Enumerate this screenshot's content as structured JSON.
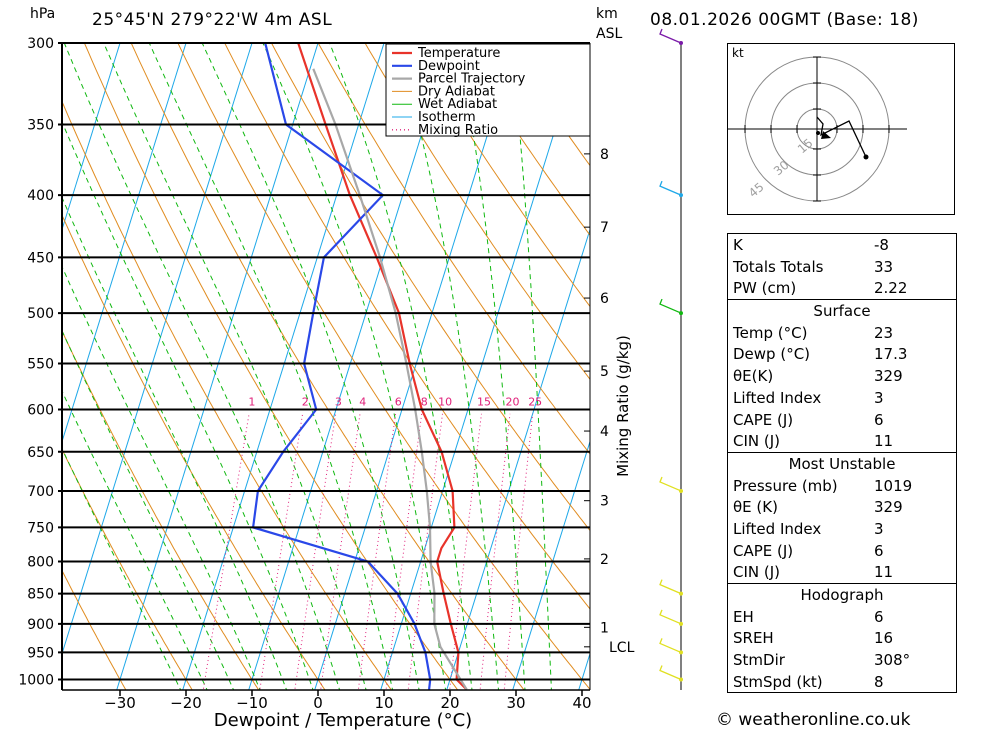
{
  "header": {
    "hpa_unit": "hPa",
    "location": "25°45'N  279°22'W  4m  ASL",
    "km_unit": "km",
    "asl_unit": "ASL",
    "datetime": "08.01.2026 00GMT (Base: 18)"
  },
  "colors": {
    "temperature": "#e8332a",
    "dewpoint": "#2a48e8",
    "parcel": "#a8a8a8",
    "dry_adiabat": "#e08c20",
    "wet_adiabat": "#10b810",
    "isotherm": "#1ea8e8",
    "mixing_ratio": "#e0207a",
    "wind": "#7a1aa8"
  },
  "chart_data": {
    "type": "line",
    "title": "",
    "xlabel": "Dewpoint / Temperature (°C)",
    "ylabel": "hPa",
    "x_ticks": [
      "−30",
      "−20",
      "−10",
      "0",
      "10",
      "20",
      "30",
      "40"
    ],
    "x_tick_values": [
      -30,
      -20,
      -10,
      0,
      10,
      20,
      30,
      40
    ],
    "pressure_levels": [
      300,
      350,
      400,
      450,
      500,
      550,
      600,
      650,
      700,
      750,
      800,
      850,
      900,
      950,
      1000
    ],
    "pressure_labels": [
      "300",
      "350",
      "400",
      "450",
      "500",
      "550",
      "600",
      "650",
      "700",
      "750",
      "800",
      "850",
      "900",
      "950",
      "1000"
    ],
    "pressure_range": [
      300,
      1020
    ],
    "skew_c": 30,
    "km_labels": [
      {
        "km": "1",
        "p": 906
      },
      {
        "km": "2",
        "p": 796
      },
      {
        "km": "3",
        "p": 713
      },
      {
        "km": "4",
        "p": 625
      },
      {
        "km": "5",
        "p": 558
      },
      {
        "km": "6",
        "p": 486
      },
      {
        "km": "7",
        "p": 425
      },
      {
        "km": "8",
        "p": 370
      }
    ],
    "lcl_label": "LCL",
    "lcl_pressure": 940,
    "mixing_ratio_axis_label": "Mixing Ratio (g/kg)",
    "mixing_ratio_values": [
      1,
      2,
      3,
      4,
      6,
      8,
      10,
      15,
      20,
      25
    ],
    "mixing_ratio_labels": [
      "1",
      "2",
      "3",
      "4",
      "6",
      "8",
      "10",
      "15",
      "20",
      "25"
    ],
    "legend": [
      "Temperature",
      "Dewpoint",
      "Parcel Trajectory",
      "Dry Adiabat",
      "Wet Adiabat",
      "Isotherm",
      "Mixing Ratio"
    ],
    "legend_position": "top-right",
    "series": [
      {
        "name": "Temperature",
        "points": [
          [
            1019,
            23
          ],
          [
            1000,
            21
          ],
          [
            950,
            20
          ],
          [
            900,
            17.5
          ],
          [
            850,
            15
          ],
          [
            800,
            12.5
          ],
          [
            780,
            12.5
          ],
          [
            750,
            13.5
          ],
          [
            700,
            11.5
          ],
          [
            650,
            8
          ],
          [
            600,
            3
          ],
          [
            550,
            -1
          ],
          [
            500,
            -5
          ],
          [
            450,
            -11
          ],
          [
            400,
            -18
          ],
          [
            350,
            -25
          ],
          [
            300,
            -33
          ]
        ]
      },
      {
        "name": "Dewpoint",
        "points": [
          [
            1019,
            17.3
          ],
          [
            1000,
            17
          ],
          [
            950,
            15
          ],
          [
            900,
            12
          ],
          [
            850,
            8
          ],
          [
            800,
            2
          ],
          [
            750,
            -17
          ],
          [
            700,
            -18
          ],
          [
            650,
            -16
          ],
          [
            600,
            -13
          ],
          [
            550,
            -17
          ],
          [
            500,
            -18
          ],
          [
            450,
            -19
          ],
          [
            400,
            -13
          ],
          [
            350,
            -31
          ],
          [
            300,
            -38
          ]
        ]
      },
      {
        "name": "Parcel Trajectory",
        "points": [
          [
            1019,
            23
          ],
          [
            940,
            17
          ],
          [
            900,
            15
          ],
          [
            850,
            13.6
          ],
          [
            800,
            11.5
          ],
          [
            750,
            9.8
          ],
          [
            700,
            7.6
          ],
          [
            650,
            5
          ],
          [
            600,
            2
          ],
          [
            550,
            -1.5
          ],
          [
            500,
            -5.5
          ],
          [
            450,
            -10.5
          ],
          [
            400,
            -16.5
          ],
          [
            350,
            -23.5
          ],
          [
            315,
            -29.5
          ]
        ]
      }
    ]
  },
  "hodograph": {
    "unit": "kt",
    "ring_labels": [
      "15",
      "30",
      "45"
    ]
  },
  "wind_barbs": [
    {
      "p": 300,
      "color": "#7a1aa8"
    },
    {
      "p": 400,
      "color": "#1ea8e8"
    },
    {
      "p": 500,
      "color": "#10b810"
    },
    {
      "p": 700,
      "color": "#e0e020"
    },
    {
      "p": 850,
      "color": "#e0e020"
    },
    {
      "p": 900,
      "color": "#e0e020"
    },
    {
      "p": 950,
      "color": "#e0e020"
    },
    {
      "p": 1000,
      "color": "#e0e020"
    }
  ],
  "indices": {
    "top": [
      {
        "k": "K",
        "v": "-8"
      },
      {
        "k": "Totals Totals",
        "v": "33"
      },
      {
        "k": "PW (cm)",
        "v": "2.22"
      }
    ],
    "surface_title": "Surface",
    "surface": [
      {
        "k": "Temp (°C)",
        "v": "23"
      },
      {
        "k": "Dewp (°C)",
        "v": "17.3"
      },
      {
        "k": "θE(K)",
        "v": "329"
      },
      {
        "k": "Lifted Index",
        "v": "3"
      },
      {
        "k": "CAPE (J)",
        "v": "6"
      },
      {
        "k": "CIN (J)",
        "v": "11"
      }
    ],
    "most_unstable_title": "Most Unstable",
    "most_unstable": [
      {
        "k": "Pressure (mb)",
        "v": "1019"
      },
      {
        "k": "θE (K)",
        "v": "329"
      },
      {
        "k": "Lifted Index",
        "v": "3"
      },
      {
        "k": "CAPE (J)",
        "v": "6"
      },
      {
        "k": "CIN (J)",
        "v": "11"
      }
    ],
    "hodograph_title": "Hodograph",
    "hodograph": [
      {
        "k": "EH",
        "v": "6"
      },
      {
        "k": "SREH",
        "v": "16"
      },
      {
        "k": "StmDir",
        "v": "308°"
      },
      {
        "k": "StmSpd (kt)",
        "v": "8"
      }
    ]
  },
  "credit": "© weatheronline.co.uk"
}
